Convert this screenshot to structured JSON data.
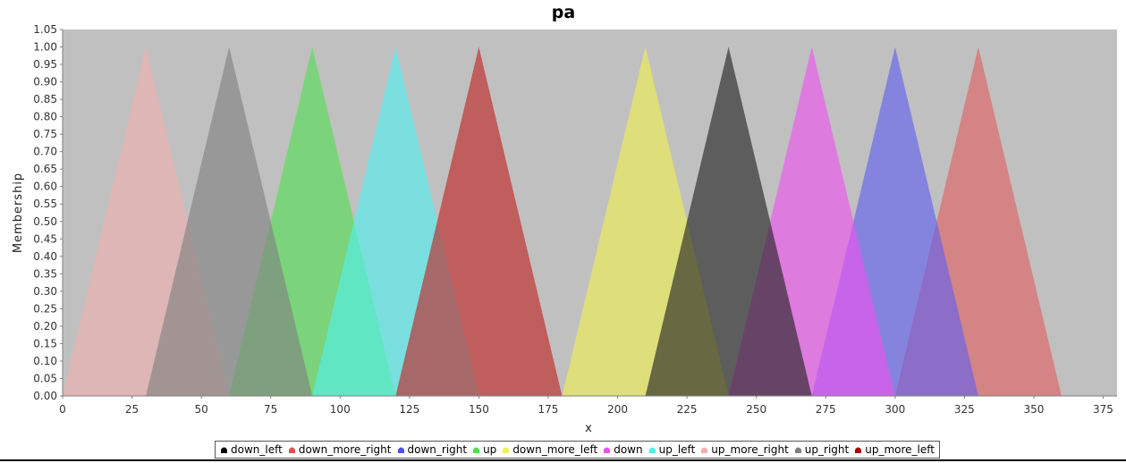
{
  "chart_data": {
    "type": "area",
    "title": "pa",
    "xlabel": "x",
    "ylabel": "Membership",
    "xlim": [
      0,
      380
    ],
    "ylim": [
      0,
      1.05
    ],
    "xticks": [
      0,
      25,
      50,
      75,
      100,
      125,
      150,
      175,
      200,
      225,
      250,
      275,
      300,
      325,
      350,
      375
    ],
    "yticks": [
      0,
      0.05,
      0.1,
      0.15,
      0.2,
      0.25,
      0.3,
      0.35,
      0.4,
      0.45,
      0.5,
      0.55,
      0.6,
      0.65,
      0.7,
      0.75,
      0.8,
      0.85,
      0.9,
      0.95,
      1.0,
      1.05
    ],
    "grid": false,
    "legend_position": "bottom",
    "series": [
      {
        "name": "down_left",
        "color": "#000000",
        "x": [
          0
        ],
        "y": [
          0
        ]
      },
      {
        "name": "down_more_right",
        "color": "#e06060",
        "x": [
          300,
          330,
          360
        ],
        "y": [
          0,
          1,
          0
        ]
      },
      {
        "name": "down_right",
        "color": "#6060f0",
        "x": [
          270,
          300,
          330
        ],
        "y": [
          0,
          1,
          0
        ]
      },
      {
        "name": "up",
        "color": "#50e050",
        "x": [
          60,
          90,
          120
        ],
        "y": [
          0,
          1,
          0
        ]
      },
      {
        "name": "down_more_left",
        "color": "#f0f050",
        "x": [
          180,
          210,
          240
        ],
        "y": [
          0,
          1,
          0
        ]
      },
      {
        "name": "down",
        "color": "#f050f0",
        "x": [
          240,
          270,
          300
        ],
        "y": [
          0,
          1,
          0
        ]
      },
      {
        "name": "up_left",
        "color": "#50f0f0",
        "x": [
          90,
          120,
          150
        ],
        "y": [
          0,
          1,
          0
        ]
      },
      {
        "name": "up_more_right",
        "color": "#f0b0b0",
        "x": [
          0,
          30,
          60
        ],
        "y": [
          0,
          1,
          0
        ]
      },
      {
        "name": "up_right",
        "color": "#808080",
        "x": [
          30,
          60,
          90
        ],
        "y": [
          0,
          1,
          0
        ]
      },
      {
        "name": "up_more_left",
        "color": "#c02020",
        "x": [
          120,
          150,
          180
        ],
        "y": [
          0,
          1,
          0
        ]
      },
      {
        "name": "",
        "color": "#202020",
        "x": [
          210,
          240,
          270
        ],
        "y": [
          0,
          1,
          0
        ]
      }
    ],
    "legend_symbols": {
      "down_left": "#000000",
      "down_more_right": "#e05050",
      "down_right": "#5050f0",
      "up": "#50e050",
      "down_more_left": "#f0f050",
      "down": "#f050f0",
      "up_left": "#50f0f0",
      "up_more_right": "#f0b0b0",
      "up_right": "#808080",
      "up_more_left": "#b00000"
    },
    "plot_background": "#c0c0c0"
  }
}
